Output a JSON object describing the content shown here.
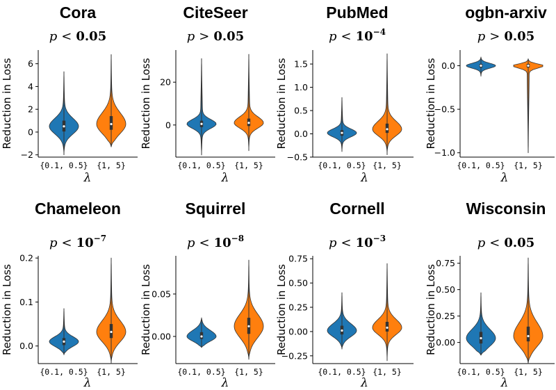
{
  "colors": {
    "blue": "#1f77b4",
    "orange": "#ff7f0e",
    "outline": "#333333"
  },
  "chart_data": [
    {
      "type": "violin",
      "title": "Cora",
      "p_value": {
        "op": "<",
        "value": "0.05"
      },
      "ylabel": "Reduction in Loss",
      "xlabel": "λ",
      "categories": [
        "{0.1, 0.5}",
        "{1, 5}"
      ],
      "ylim": [
        -2.2,
        7.2
      ],
      "yticks": [
        "-2",
        "0",
        "2",
        "4",
        "6"
      ],
      "ytick_values": [
        -2,
        0,
        2,
        4,
        6
      ],
      "series": [
        {
          "min": -2.0,
          "q1": 0.05,
          "median": 0.5,
          "q3": 1.0,
          "max": 5.3
        },
        {
          "min": -1.3,
          "q1": 0.2,
          "median": 0.7,
          "q3": 1.4,
          "max": 6.8
        }
      ]
    },
    {
      "type": "violin",
      "title": "CiteSeer",
      "p_value": {
        "op": ">",
        "value": "0.05"
      },
      "ylabel": "Reduction in Loss",
      "xlabel": "λ",
      "categories": [
        "{0.1, 0.5}",
        "{1, 5}"
      ],
      "ylim": [
        -15,
        35
      ],
      "yticks": [
        "0",
        "20"
      ],
      "ytick_values": [
        0,
        20
      ],
      "series": [
        {
          "min": -14,
          "q1": -1,
          "median": 0.5,
          "q3": 2,
          "max": 31
        },
        {
          "min": -12,
          "q1": -0.5,
          "median": 1,
          "q3": 3,
          "max": 33
        }
      ]
    },
    {
      "type": "violin",
      "title": "PubMed",
      "p_value": {
        "op": "<",
        "value": "10",
        "exp": "-4"
      },
      "ylabel": "Reduction in Loss",
      "xlabel": "λ",
      "categories": [
        "{0.1, 0.5}",
        "{1, 5}"
      ],
      "ylim": [
        -0.5,
        1.8
      ],
      "yticks": [
        "-0.5",
        "0.0",
        "0.5",
        "1.0",
        "1.5"
      ],
      "ytick_values": [
        -0.5,
        0,
        0.5,
        1.0,
        1.5
      ],
      "series": [
        {
          "min": -0.38,
          "q1": -0.04,
          "median": 0.02,
          "q3": 0.08,
          "max": 0.78
        },
        {
          "min": -0.45,
          "q1": 0.02,
          "median": 0.1,
          "q3": 0.22,
          "max": 1.72
        }
      ]
    },
    {
      "type": "violin",
      "title": "ogbn-arxiv",
      "p_value": {
        "op": ">",
        "value": "0.05"
      },
      "ylabel": "Reduction in Loss",
      "xlabel": "λ",
      "categories": [
        "{0.1, 0.5}",
        "{1, 5}"
      ],
      "ylim": [
        -1.05,
        0.18
      ],
      "yticks": [
        "-1.0",
        "-0.5",
        "0.0"
      ],
      "ytick_values": [
        -1.0,
        -0.5,
        0.0
      ],
      "series": [
        {
          "min": -0.12,
          "q1": -0.02,
          "median": 0.0,
          "q3": 0.02,
          "max": 0.1
        },
        {
          "min": -1.0,
          "q1": -0.02,
          "median": 0.0,
          "q3": 0.02,
          "max": 0.08
        }
      ]
    },
    {
      "type": "violin",
      "title": "Chameleon",
      "p_value": {
        "op": "<",
        "value": "10",
        "exp": "-7"
      },
      "ylabel": "Reduction in Loss",
      "xlabel": "λ",
      "categories": [
        "{0.1, 0.5}",
        "{1, 5}"
      ],
      "ylim": [
        -0.04,
        0.205
      ],
      "yticks": [
        "0.0",
        "0.1",
        "0.2"
      ],
      "ytick_values": [
        0,
        0.1,
        0.2
      ],
      "series": [
        {
          "min": -0.02,
          "q1": 0.002,
          "median": 0.01,
          "q3": 0.018,
          "max": 0.085
        },
        {
          "min": -0.04,
          "q1": 0.018,
          "median": 0.032,
          "q3": 0.05,
          "max": 0.2
        }
      ]
    },
    {
      "type": "violin",
      "title": "Squirrel",
      "p_value": {
        "op": "<",
        "value": "10",
        "exp": "-8"
      },
      "ylabel": "Reduction in Loss",
      "xlabel": "λ",
      "categories": [
        "{0.1, 0.5}",
        "{1, 5}"
      ],
      "ylim": [
        -0.032,
        0.095
      ],
      "yticks": [
        "0.00",
        "0.05"
      ],
      "ytick_values": [
        0,
        0.05
      ],
      "series": [
        {
          "min": -0.013,
          "q1": -0.003,
          "median": 0.0,
          "q3": 0.005,
          "max": 0.022
        },
        {
          "min": -0.027,
          "q1": 0.003,
          "median": 0.012,
          "q3": 0.022,
          "max": 0.09
        }
      ]
    },
    {
      "type": "violin",
      "title": "Cornell",
      "p_value": {
        "op": "<",
        "value": "10",
        "exp": "-3"
      },
      "ylabel": "Reduction in Loss",
      "xlabel": "λ",
      "categories": [
        "{0.1, 0.5}",
        "{1, 5}"
      ],
      "ylim": [
        -0.33,
        0.78
      ],
      "yticks": [
        "-0.25",
        "0.00",
        "0.25",
        "0.50",
        "0.75"
      ],
      "ytick_values": [
        -0.25,
        0,
        0.25,
        0.5,
        0.75
      ],
      "series": [
        {
          "min": -0.18,
          "q1": -0.03,
          "median": 0.01,
          "q3": 0.06,
          "max": 0.4
        },
        {
          "min": -0.3,
          "q1": 0.0,
          "median": 0.04,
          "q3": 0.1,
          "max": 0.7
        }
      ]
    },
    {
      "type": "violin",
      "title": "Wisconsin",
      "p_value": {
        "op": "<",
        "value": "0.05"
      },
      "ylabel": "Reduction in Loss",
      "xlabel": "λ",
      "categories": [
        "{0.1, 0.5}",
        "{1, 5}"
      ],
      "ylim": [
        -0.2,
        0.82
      ],
      "yticks": [
        "0.00",
        "0.25",
        "0.50",
        "0.75"
      ],
      "ytick_values": [
        0,
        0.25,
        0.5,
        0.75
      ],
      "series": [
        {
          "min": -0.12,
          "q1": -0.01,
          "median": 0.04,
          "q3": 0.1,
          "max": 0.47
        },
        {
          "min": -0.2,
          "q1": 0.01,
          "median": 0.06,
          "q3": 0.15,
          "max": 0.8
        }
      ]
    }
  ]
}
